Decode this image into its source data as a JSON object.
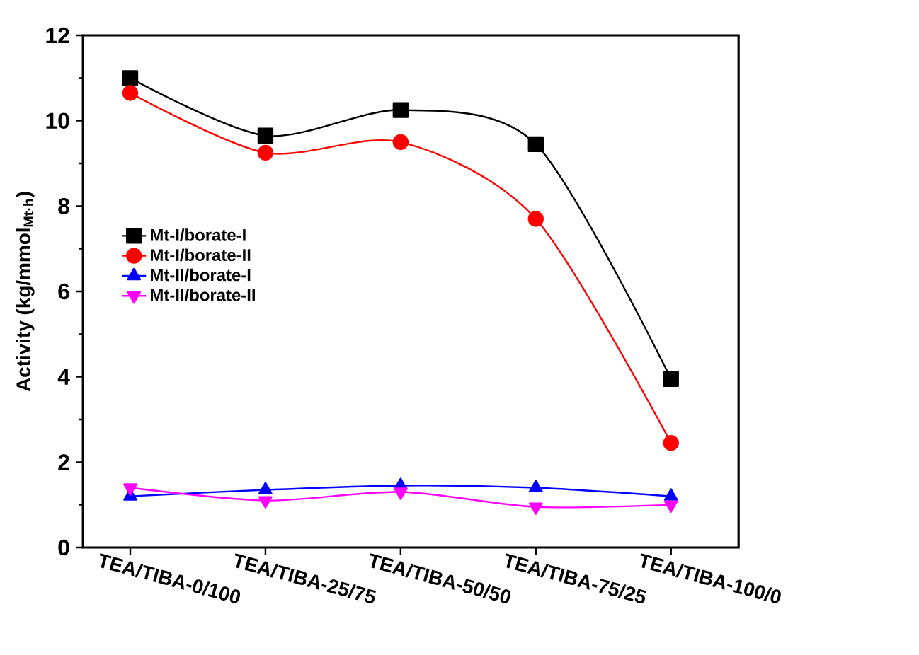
{
  "chart_data": {
    "type": "line",
    "ylabel": "Activity (kg/mmol$_{Mt·h}$)",
    "categories": [
      "TEA/TIBA-0/100",
      "TEA/TIBA-25/75",
      "TEA/TIBA-50/50",
      "TEA/TIBA-75/25",
      "TEA/TIBA-100/0"
    ],
    "ylim": [
      0,
      12
    ],
    "yticks": [
      0,
      2,
      4,
      6,
      8,
      10,
      12
    ],
    "grid": false,
    "legend": "left",
    "series": [
      {
        "name": "Mt-I/borate-I",
        "color": "#000000",
        "marker": "square",
        "values": [
          11.0,
          9.65,
          10.25,
          9.45,
          3.95
        ]
      },
      {
        "name": "Mt-I/borate-II",
        "color": "#ff0000",
        "marker": "circle",
        "values": [
          10.65,
          9.25,
          9.5,
          7.7,
          2.45
        ]
      },
      {
        "name": "Mt-II/borate-I",
        "color": "#0000ff",
        "marker": "triangle",
        "values": [
          1.2,
          1.35,
          1.45,
          1.4,
          1.2
        ]
      },
      {
        "name": "Mt-II/borate-II",
        "color": "#ff00ff",
        "marker": "triangle down",
        "values": [
          1.4,
          1.1,
          1.3,
          0.95,
          1.0
        ]
      }
    ]
  }
}
